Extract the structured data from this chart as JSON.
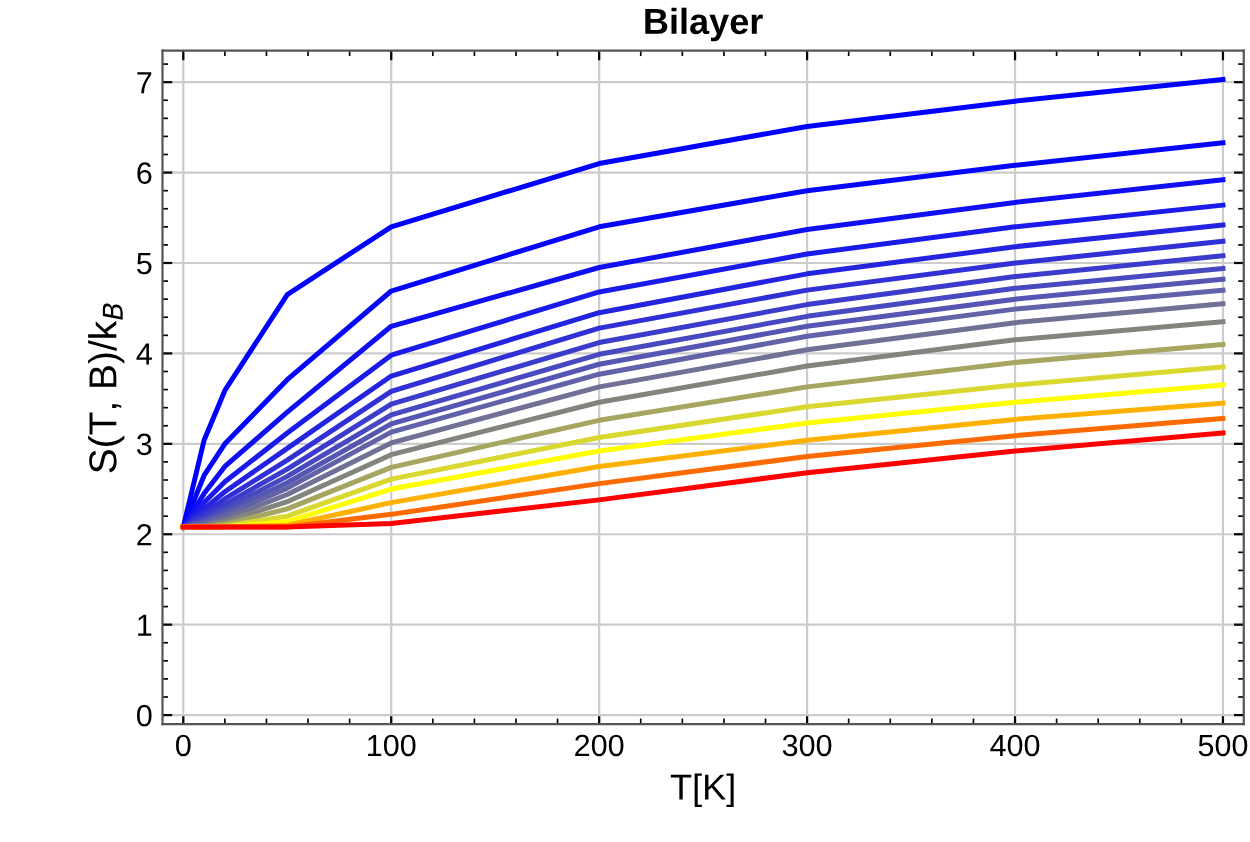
{
  "chart_data": {
    "type": "line",
    "title": "Bilayer",
    "xlabel": "T[K]",
    "ylabel": "S(T, B)/k$_{B}$",
    "x": [
      0,
      10,
      20,
      50,
      100,
      200,
      300,
      400,
      500
    ],
    "xlim": [
      -10,
      510
    ],
    "xticks": [
      0,
      100,
      200,
      300,
      400,
      500
    ],
    "ylim": [
      -0.1,
      7.35
    ],
    "yticks": [
      0,
      1,
      2,
      3,
      4,
      5,
      6,
      7
    ],
    "grid": true,
    "series": [
      {
        "color": "#0000ff",
        "values": [
          2.08,
          3.04,
          3.59,
          4.65,
          5.4,
          6.1,
          6.51,
          6.79,
          7.03
        ]
      },
      {
        "color": "#0505fa",
        "values": [
          2.08,
          2.65,
          3.0,
          3.71,
          4.69,
          5.4,
          5.8,
          6.08,
          6.33
        ]
      },
      {
        "color": "#0f0ff2",
        "values": [
          2.08,
          2.45,
          2.75,
          3.35,
          4.3,
          4.95,
          5.37,
          5.67,
          5.92
        ]
      },
      {
        "color": "#1a1aea",
        "values": [
          2.08,
          2.35,
          2.58,
          3.12,
          3.98,
          4.68,
          5.1,
          5.4,
          5.64
        ]
      },
      {
        "color": "#2424e0",
        "values": [
          2.08,
          2.28,
          2.47,
          2.95,
          3.75,
          4.45,
          4.88,
          5.18,
          5.42
        ]
      },
      {
        "color": "#3030d6",
        "values": [
          2.08,
          2.23,
          2.39,
          2.82,
          3.58,
          4.28,
          4.7,
          5.0,
          5.24
        ]
      },
      {
        "color": "#3c3ccc",
        "values": [
          2.08,
          2.19,
          2.33,
          2.72,
          3.44,
          4.12,
          4.54,
          4.85,
          5.08
        ]
      },
      {
        "color": "#4848c0",
        "values": [
          2.08,
          2.16,
          2.28,
          2.64,
          3.32,
          3.99,
          4.41,
          4.72,
          4.94
        ]
      },
      {
        "color": "#5555b4",
        "values": [
          2.08,
          2.14,
          2.24,
          2.57,
          3.22,
          3.88,
          4.3,
          4.6,
          4.82
        ]
      },
      {
        "color": "#6262a8",
        "values": [
          2.08,
          2.12,
          2.21,
          2.51,
          3.13,
          3.77,
          4.19,
          4.49,
          4.7
        ]
      },
      {
        "color": "#717196",
        "values": [
          2.08,
          2.1,
          2.17,
          2.44,
          3.01,
          3.63,
          4.04,
          4.34,
          4.55
        ]
      },
      {
        "color": "#84847e",
        "values": [
          2.08,
          2.09,
          2.14,
          2.36,
          2.88,
          3.46,
          3.86,
          4.15,
          4.35
        ]
      },
      {
        "color": "#a6a660",
        "values": [
          2.08,
          2.08,
          2.11,
          2.28,
          2.74,
          3.26,
          3.63,
          3.9,
          4.1
        ]
      },
      {
        "color": "#d8d830",
        "values": [
          2.08,
          2.08,
          2.09,
          2.2,
          2.61,
          3.07,
          3.41,
          3.65,
          3.85
        ]
      },
      {
        "color": "#ffff00",
        "values": [
          2.08,
          2.08,
          2.08,
          2.14,
          2.5,
          2.92,
          3.23,
          3.46,
          3.65
        ]
      },
      {
        "color": "#ffb000",
        "values": [
          2.08,
          2.08,
          2.08,
          2.1,
          2.35,
          2.75,
          3.04,
          3.27,
          3.45
        ]
      },
      {
        "color": "#ff6a00",
        "values": [
          2.08,
          2.08,
          2.08,
          2.08,
          2.22,
          2.56,
          2.86,
          3.09,
          3.28
        ]
      },
      {
        "color": "#ff0000",
        "values": [
          2.08,
          2.08,
          2.08,
          2.08,
          2.12,
          2.38,
          2.68,
          2.92,
          3.12
        ]
      }
    ]
  }
}
